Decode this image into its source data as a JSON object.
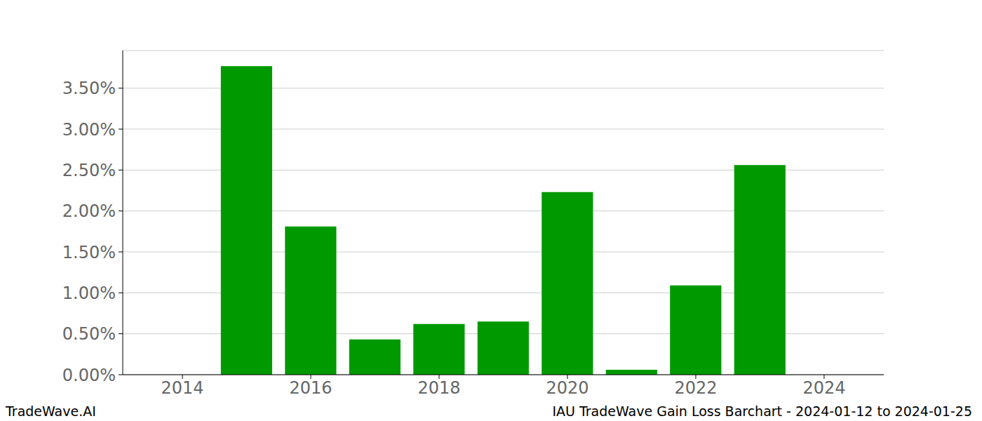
{
  "chart_data": {
    "type": "bar",
    "annotations": [
      "TradeWave.AI",
      "IAU TradeWave Gain Loss Barchart - 2024-01-12 to 2024-01-25"
    ],
    "x": [
      2015,
      2016,
      2017,
      2018,
      2019,
      2020,
      2021,
      2022,
      2023
    ],
    "values": [
      3.77,
      1.81,
      0.43,
      0.62,
      0.65,
      2.23,
      0.06,
      1.09,
      2.56
    ],
    "color": "#009900",
    "xlim": [
      2013.07,
      2024.93
    ],
    "xticks": [
      2014,
      2016,
      2018,
      2020,
      2022,
      2024
    ],
    "ylim": [
      0,
      3.96
    ],
    "yticks": [
      {
        "value": 0,
        "label": "0.00%"
      },
      {
        "value": 0.5,
        "label": "0.50%"
      },
      {
        "value": 1,
        "label": "1.00%"
      },
      {
        "value": 1.5,
        "label": "1.50%"
      },
      {
        "value": 2,
        "label": "2.00%"
      },
      {
        "value": 2.5,
        "label": "2.50%"
      },
      {
        "value": 3,
        "label": "3.00%"
      },
      {
        "value": 3.5,
        "label": "3.50%"
      }
    ],
    "grid": true
  }
}
